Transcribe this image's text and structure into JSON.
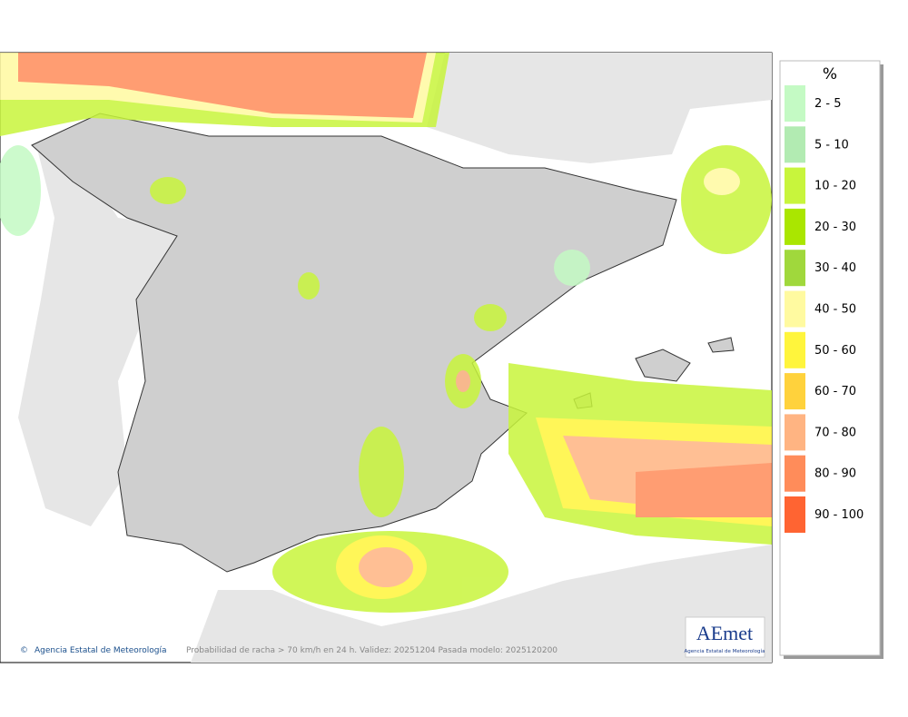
{
  "legend": {
    "title": "%",
    "items": [
      {
        "label": "2 - 5",
        "color": "#c4fac4"
      },
      {
        "label": "5 - 10",
        "color": "#b2ebb2"
      },
      {
        "label": "10 - 20",
        "color": "#c8f53c"
      },
      {
        "label": "20 - 30",
        "color": "#aae600"
      },
      {
        "label": "30 - 40",
        "color": "#a0d83c"
      },
      {
        "label": "40 - 50",
        "color": "#fffaa0"
      },
      {
        "label": "50 - 60",
        "color": "#fff53c"
      },
      {
        "label": "60 - 70",
        "color": "#ffd23c"
      },
      {
        "label": "70 - 80",
        "color": "#ffb482"
      },
      {
        "label": "80 - 90",
        "color": "#ff8c5a"
      },
      {
        "label": "90 - 100",
        "color": "#ff6432"
      }
    ]
  },
  "footer": {
    "credit": "Agencia Estatal de Meteorología",
    "caption": "Probabilidad de racha > 70 km/h en 24 h. Validez: 20251204 Pasada modelo: 2025120200"
  },
  "logo": {
    "name": "AEmet",
    "subtitle": "Agencia Estatal de Meteorología"
  }
}
